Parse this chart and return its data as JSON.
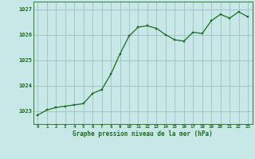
{
  "x": [
    0,
    1,
    2,
    3,
    4,
    5,
    6,
    7,
    8,
    9,
    10,
    11,
    12,
    13,
    14,
    15,
    16,
    17,
    18,
    19,
    20,
    21,
    22,
    23
  ],
  "y": [
    1022.85,
    1023.05,
    1023.15,
    1023.2,
    1023.25,
    1023.3,
    1023.7,
    1023.85,
    1024.45,
    1025.25,
    1025.95,
    1026.3,
    1026.35,
    1026.25,
    1026.0,
    1025.8,
    1025.75,
    1026.1,
    1026.05,
    1026.55,
    1026.8,
    1026.65,
    1026.9,
    1026.7
  ],
  "line_color": "#1a6b1a",
  "marker_color": "#1a6b1a",
  "bg_color": "#c8e8e8",
  "grid_color": "#a0c8c8",
  "text_color": "#1a6b1a",
  "xlabel": "Graphe pression niveau de la mer (hPa)",
  "ylim": [
    1022.5,
    1027.3
  ],
  "yticks": [
    1023,
    1024,
    1025,
    1026,
    1027
  ],
  "xticks": [
    0,
    1,
    2,
    3,
    4,
    5,
    6,
    7,
    8,
    9,
    10,
    11,
    12,
    13,
    14,
    15,
    16,
    17,
    18,
    19,
    20,
    21,
    22,
    23
  ],
  "xlim": [
    -0.5,
    23.5
  ]
}
